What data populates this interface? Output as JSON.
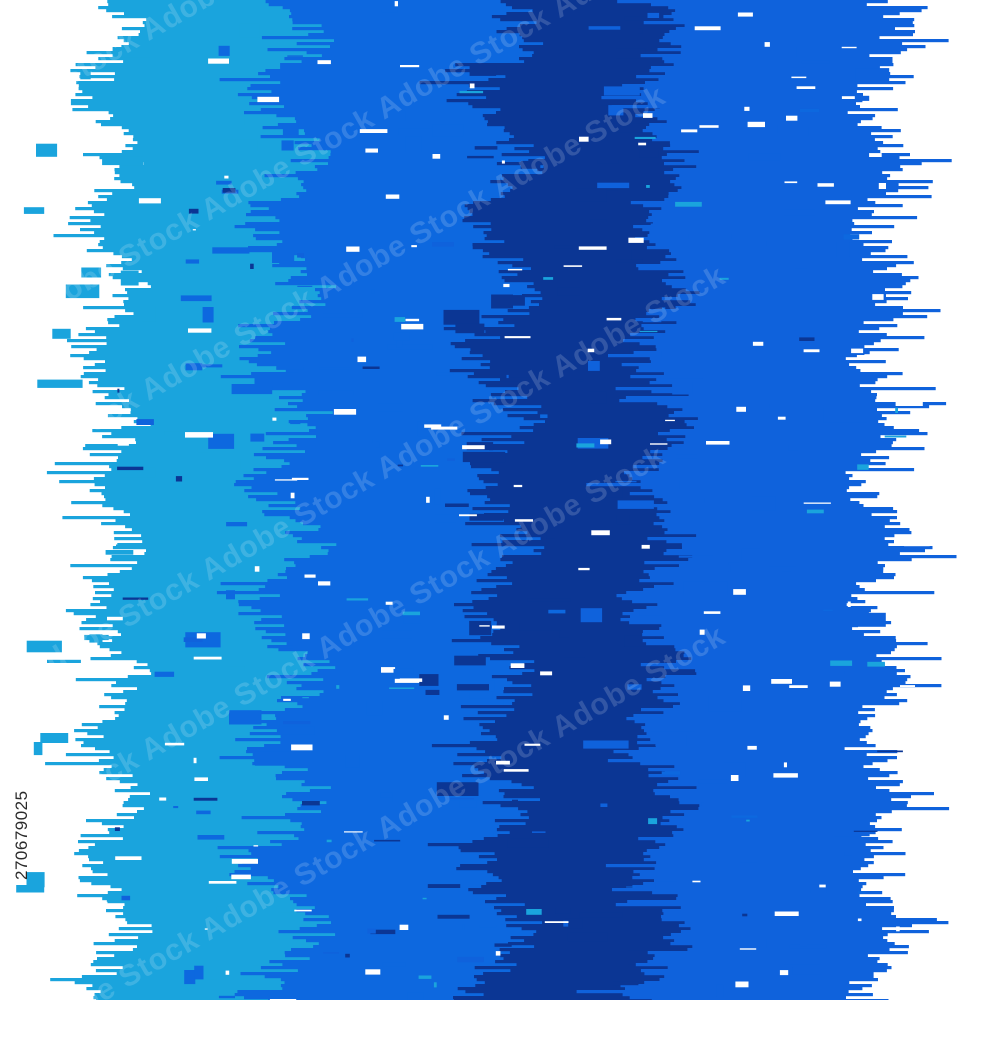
{
  "image": {
    "background": "#ffffff",
    "bands": [
      {
        "name": "light-cyan",
        "color": "#1aa4dd"
      },
      {
        "name": "mid-blue",
        "color": "#0d68df"
      },
      {
        "name": "dark-navy",
        "color": "#0b3694"
      },
      {
        "name": "bright-blue",
        "color": "#0f62dc"
      }
    ],
    "watermark": {
      "text": "Adobe Stock"
    },
    "stock_id": "270679025"
  }
}
